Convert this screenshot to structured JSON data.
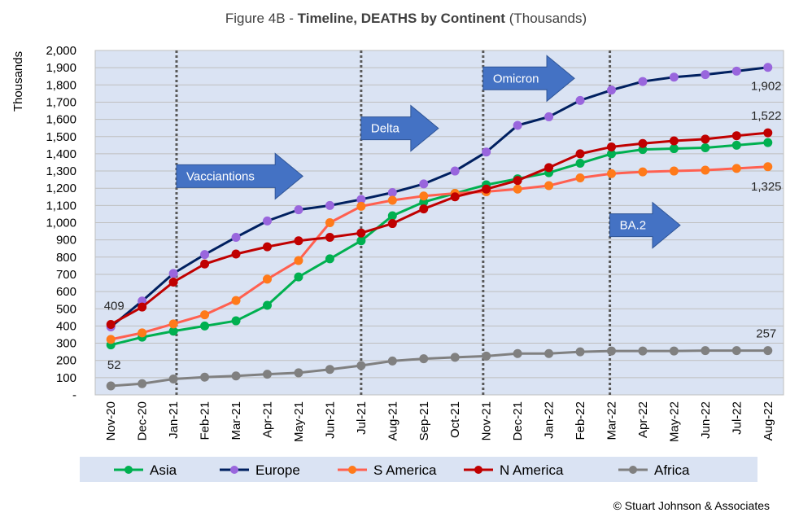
{
  "chart_data": {
    "type": "line",
    "title_prefix": "Figure 4B - ",
    "title_bold": "Timeline, DEATHS by Continent",
    "title_suffix": " (Thousands)",
    "ylabel": "Thousands",
    "ylim": [
      0,
      2000
    ],
    "yticks": [
      "-",
      "100",
      "200",
      "300",
      "400",
      "500",
      "600",
      "700",
      "800",
      "900",
      "1,000",
      "1,100",
      "1,200",
      "1,300",
      "1,400",
      "1,500",
      "1,600",
      "1,700",
      "1,800",
      "1,900",
      "2,000"
    ],
    "grid": true,
    "legend_position": "bottom",
    "categories": [
      "Nov-20",
      "Dec-20",
      "Jan-21",
      "Feb-21",
      "Mar-21",
      "Apr-21",
      "May-21",
      "Jun-21",
      "Jul-21",
      "Aug-21",
      "Sep-21",
      "Oct-21",
      "Nov-21",
      "Dec-21",
      "Jan-22",
      "Feb-22",
      "Mar-22",
      "Apr-22",
      "May-22",
      "Jun-22",
      "Jul-22",
      "Aug-22"
    ],
    "series": [
      {
        "name": "Asia",
        "color": "#00b050",
        "marker_color": "#00b050",
        "values": [
          290,
          335,
          370,
          400,
          430,
          520,
          685,
          790,
          895,
          1040,
          1120,
          1170,
          1220,
          1255,
          1290,
          1345,
          1400,
          1425,
          1430,
          1435,
          1450,
          1465
        ]
      },
      {
        "name": "Europe",
        "color": "#002060",
        "marker_color": "#9966dd",
        "values": [
          395,
          545,
          705,
          815,
          915,
          1010,
          1075,
          1100,
          1135,
          1175,
          1225,
          1300,
          1410,
          1565,
          1615,
          1710,
          1770,
          1820,
          1845,
          1860,
          1880,
          1902
        ]
      },
      {
        "name": "S America",
        "color": "#ff6050",
        "marker_color": "#ff7a1a",
        "values": [
          322,
          360,
          412,
          465,
          548,
          672,
          780,
          1000,
          1095,
          1130,
          1155,
          1170,
          1180,
          1195,
          1215,
          1260,
          1285,
          1295,
          1300,
          1305,
          1315,
          1325
        ]
      },
      {
        "name": "N America",
        "color": "#c00000",
        "marker_color": "#c00000",
        "values": [
          409,
          510,
          655,
          760,
          818,
          860,
          895,
          915,
          940,
          995,
          1080,
          1150,
          1195,
          1245,
          1320,
          1400,
          1440,
          1460,
          1475,
          1485,
          1505,
          1522
        ]
      },
      {
        "name": "Africa",
        "color": "#808080",
        "marker_color": "#808080",
        "values": [
          52,
          65,
          92,
          103,
          110,
          120,
          128,
          148,
          170,
          197,
          210,
          218,
          225,
          240,
          240,
          250,
          255,
          255,
          255,
          257,
          257,
          257
        ]
      }
    ],
    "data_labels": [
      {
        "text": "409",
        "series": "N America",
        "index": 0
      },
      {
        "text": "52",
        "series": "Africa",
        "index": 0
      },
      {
        "text": "1,902",
        "series": "Europe",
        "index": 21
      },
      {
        "text": "1,522",
        "series": "N America",
        "index": 21
      },
      {
        "text": "1,325",
        "series": "S America",
        "index": 21
      },
      {
        "text": "257",
        "series": "Africa",
        "index": 21
      }
    ],
    "event_markers": [
      {
        "label": "Vacciantions",
        "index": 2.1,
        "arrow_value": 1270
      },
      {
        "label": "Delta",
        "index": 8.0,
        "arrow_value": 1548
      },
      {
        "label": "Omicron",
        "index": 11.9,
        "arrow_value": 1838
      },
      {
        "label": "BA.2",
        "index": 15.95,
        "arrow_value": 985
      }
    ],
    "arrow_color": "#4472c4"
  },
  "footer": {
    "copyright": "© Stuart Johnson & Associates"
  }
}
